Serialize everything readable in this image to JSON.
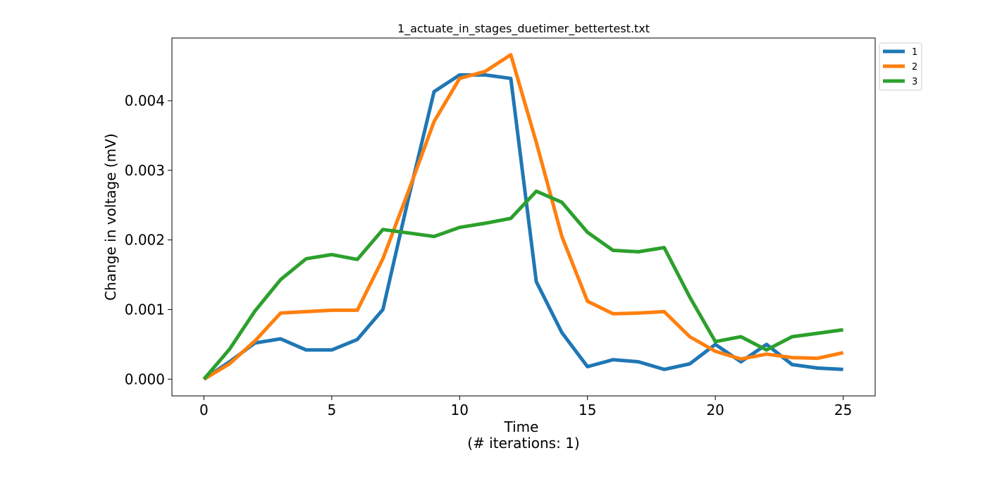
{
  "chart_data": {
    "type": "line",
    "title": "1_actuate_in_stages_duetimer_bettertest.txt",
    "xlabel": "Time",
    "xlabel_sub": "(# iterations: 1)",
    "ylabel": "Change in voltage (mV)",
    "xlim": [
      -1.25,
      26.25
    ],
    "ylim": [
      -0.00024,
      0.0049
    ],
    "xticks": [
      0,
      5,
      10,
      15,
      20,
      25
    ],
    "xtick_labels": [
      "0",
      "5",
      "10",
      "15",
      "20",
      "25"
    ],
    "yticks": [
      0.0,
      0.001,
      0.002,
      0.003,
      0.004
    ],
    "ytick_labels": [
      "0.000",
      "0.001",
      "0.002",
      "0.003",
      "0.004"
    ],
    "grid": false,
    "legend_position": "outside-top-right",
    "x": [
      0,
      1,
      2,
      3,
      4,
      5,
      6,
      7,
      8,
      9,
      10,
      11,
      12,
      13,
      14,
      15,
      16,
      17,
      18,
      19,
      20,
      21,
      22,
      23,
      24,
      25
    ],
    "series": [
      {
        "name": "1",
        "color": "#1f77b4",
        "values": [
          0.0,
          0.00025,
          0.00052,
          0.00058,
          0.00042,
          0.00042,
          0.00057,
          0.001,
          0.0026,
          0.00413,
          0.00437,
          0.00437,
          0.00432,
          0.0014,
          0.00067,
          0.00018,
          0.00028,
          0.00025,
          0.00014,
          0.00022,
          0.0005,
          0.00025,
          0.0005,
          0.00021,
          0.00016,
          0.00014
        ]
      },
      {
        "name": "2",
        "color": "#ff7f0e",
        "values": [
          0.0,
          0.00022,
          0.00055,
          0.00095,
          0.00097,
          0.00099,
          0.00099,
          0.00173,
          0.0027,
          0.0037,
          0.00432,
          0.00442,
          0.00466,
          0.0034,
          0.00205,
          0.00112,
          0.00094,
          0.00095,
          0.00097,
          0.00061,
          0.0004,
          0.00029,
          0.00036,
          0.00031,
          0.0003,
          0.00038
        ]
      },
      {
        "name": "3",
        "color": "#2ca02c",
        "values": [
          0.0,
          0.00043,
          0.00098,
          0.00143,
          0.00173,
          0.00179,
          0.00172,
          0.00215,
          0.0021,
          0.00205,
          0.00218,
          0.00224,
          0.00231,
          0.0027,
          0.00254,
          0.00211,
          0.00185,
          0.00183,
          0.00189,
          0.00118,
          0.00054,
          0.00061,
          0.00042,
          0.00061,
          0.00066,
          0.00071
        ]
      }
    ]
  }
}
